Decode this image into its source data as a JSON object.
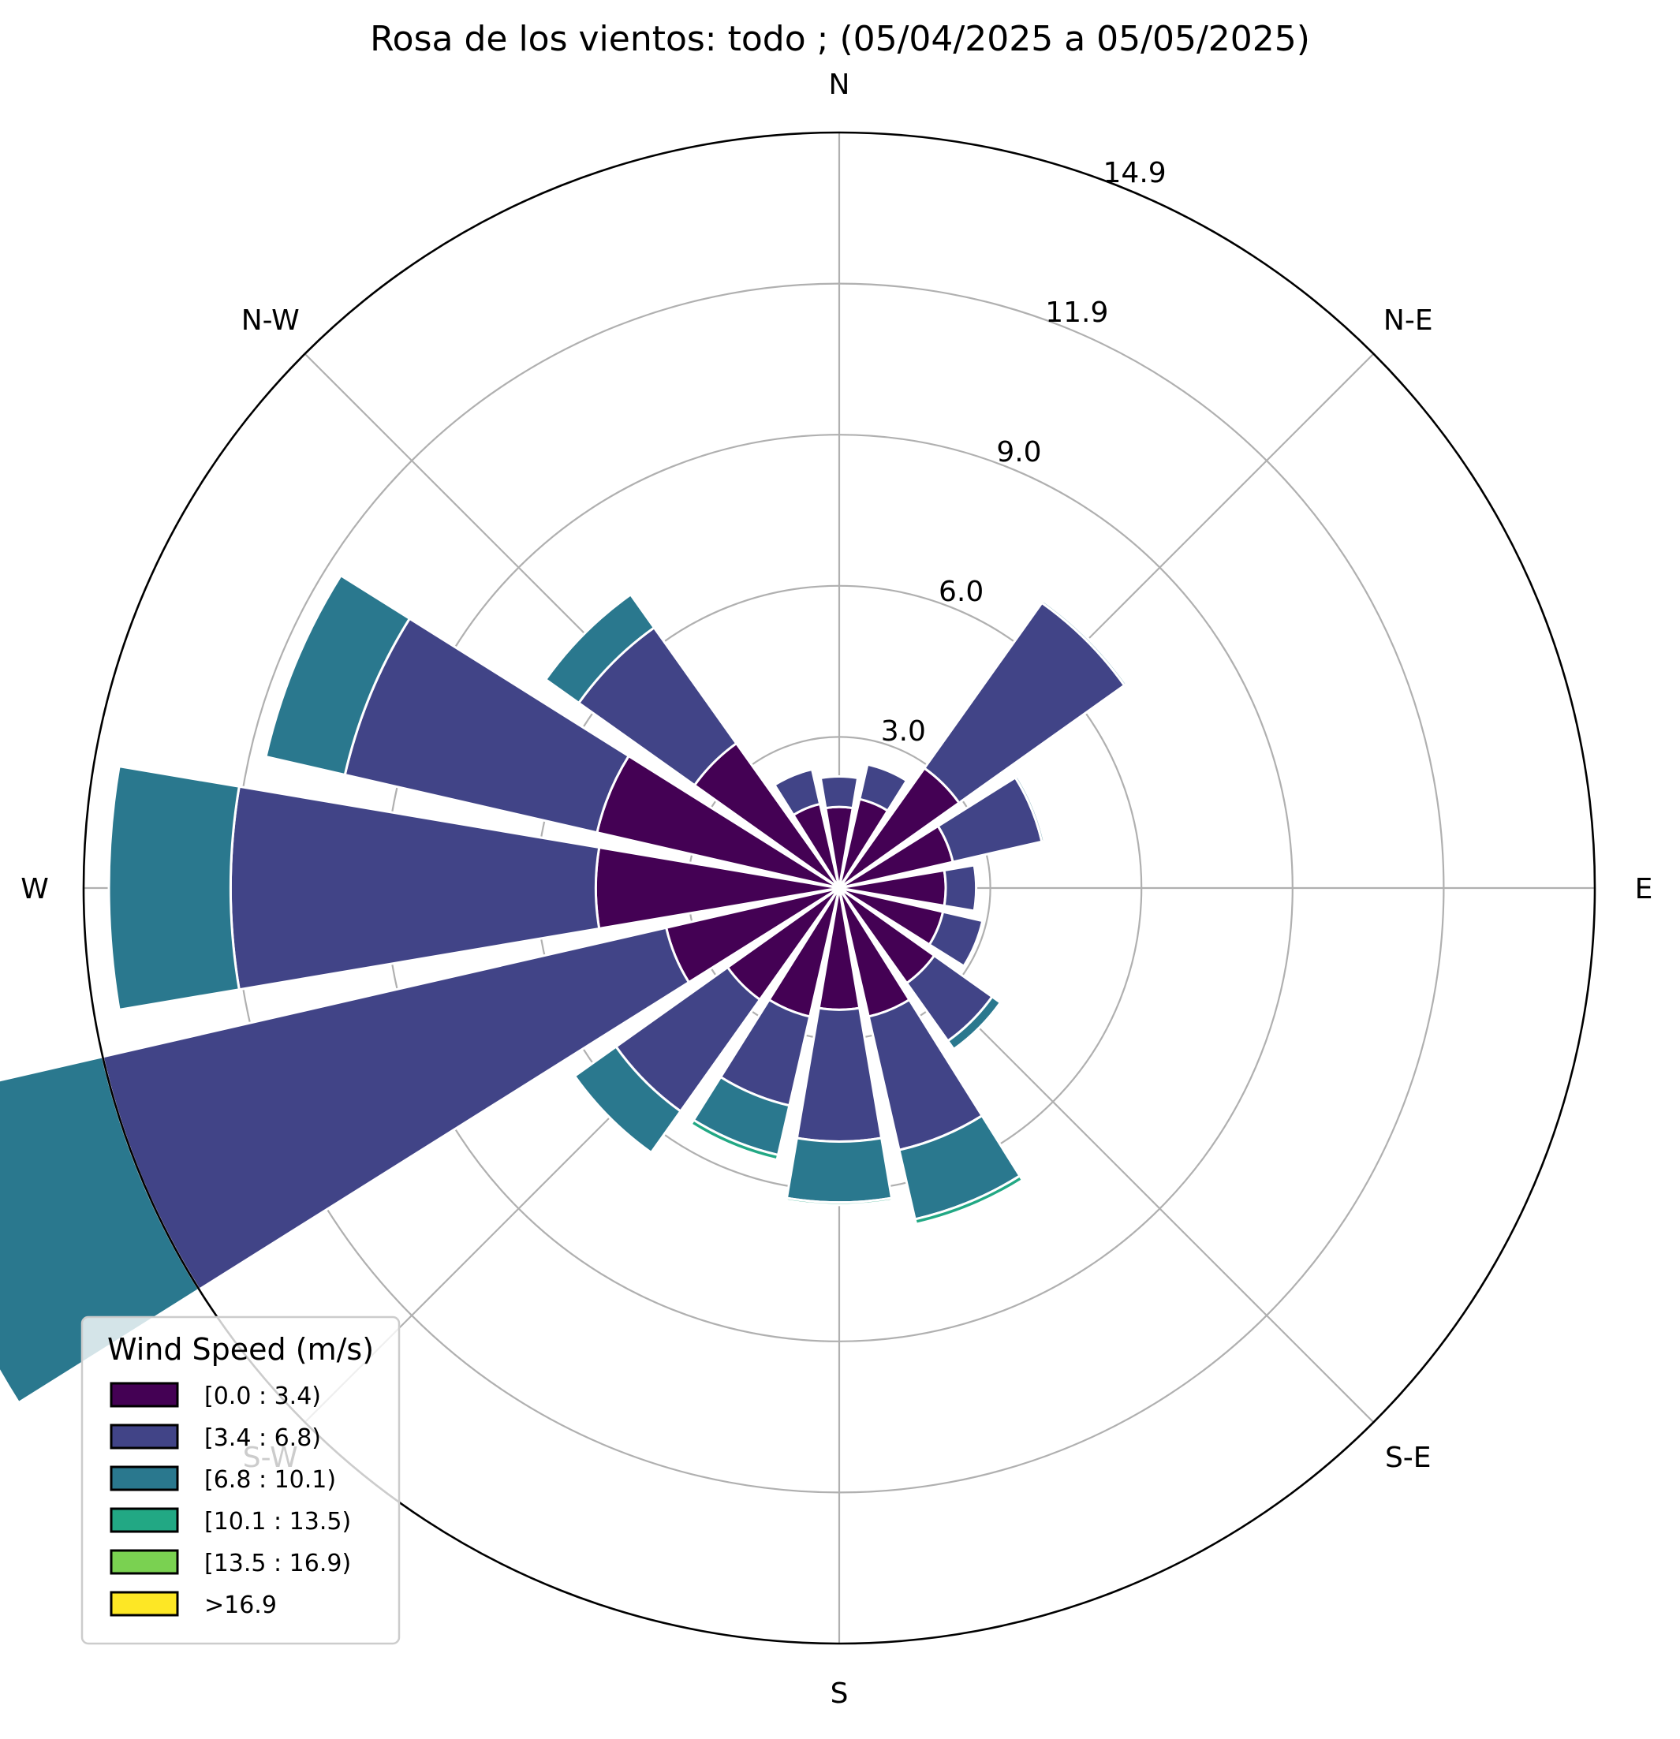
{
  "chart_data": {
    "type": "windrose",
    "title": "Rosa de los vientos: todo ; (05/04/2025 a 05/05/2025)",
    "directions_deg": [
      0,
      22.5,
      45,
      67.5,
      90,
      112.5,
      135,
      157.5,
      180,
      202.5,
      225,
      247.5,
      270,
      292.5,
      315,
      337.5
    ],
    "compass_labels": [
      "N",
      "N-E",
      "E",
      "S-E",
      "S",
      "S-W",
      "W",
      "N-W"
    ],
    "radial_ticks": [
      "3.0",
      "6.0",
      "9.0",
      "11.9",
      "14.9"
    ],
    "radial_tick_values": [
      2.98,
      5.96,
      8.94,
      11.92,
      14.9
    ],
    "rmax": 14.9,
    "legend": {
      "title": "Wind Speed (m/s)",
      "placement": "lower-left",
      "entries": [
        "[0.0 : 3.4)",
        "[3.4 : 6.8)",
        "[6.8 : 10.1)",
        "[10.1 : 13.5)",
        "[13.5 : 16.9)",
        ">16.9"
      ]
    },
    "colors": [
      "#440154",
      "#414487",
      "#2a788e",
      "#22a884",
      "#7ad151",
      "#fde725"
    ],
    "series": [
      {
        "name": "[0.0 : 3.4)",
        "values": [
          1.6,
          1.8,
          2.9,
          2.3,
          2.1,
          2.1,
          2.3,
          2.6,
          2.4,
          2.6,
          2.7,
          3.5,
          4.8,
          4.9,
          3.5,
          1.7
        ]
      },
      {
        "name": "[3.4 : 6.8)",
        "values": [
          0.6,
          0.7,
          4.0,
          1.8,
          0.6,
          0.8,
          1.4,
          2.7,
          2.6,
          1.8,
          2.7,
          11.4,
          7.2,
          5.1,
          2.8,
          0.7
        ]
      },
      {
        "name": "[6.8 : 10.1)",
        "values": [
          0,
          0,
          0.05,
          0.05,
          0,
          0,
          0.2,
          1.4,
          1.2,
          1.0,
          1.0,
          4.2,
          2.4,
          1.6,
          0.8,
          0
        ]
      },
      {
        "name": "[10.1 : 13.5)",
        "values": [
          0,
          0,
          0,
          0,
          0,
          0,
          0,
          0.1,
          0.05,
          0.1,
          0,
          0,
          0,
          0,
          0,
          0
        ]
      },
      {
        "name": "[13.5 : 16.9)",
        "values": [
          0,
          0,
          0,
          0,
          0,
          0,
          0,
          0,
          0,
          0,
          0,
          0,
          0,
          0,
          0,
          0
        ]
      },
      {
        "name": ">16.9",
        "values": [
          0,
          0,
          0,
          0,
          0,
          0,
          0,
          0,
          0,
          0,
          0,
          0,
          0,
          0,
          0,
          0
        ]
      }
    ]
  }
}
